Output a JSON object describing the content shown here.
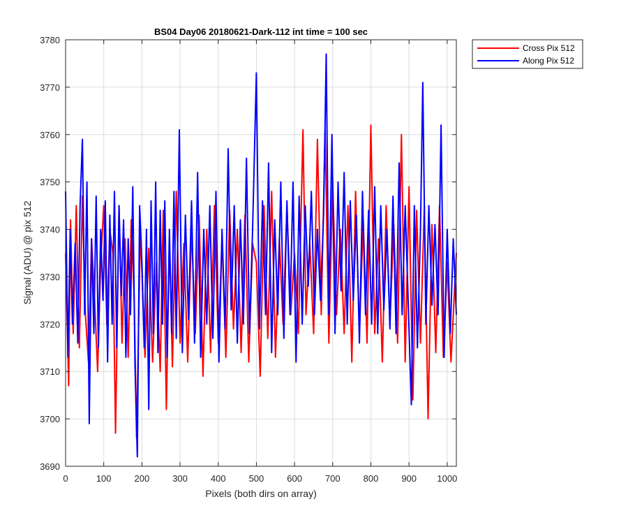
{
  "chart_data": {
    "type": "line",
    "title": "BS04 Day06 20180621-Dark-112 int time = 100 sec",
    "xlabel": "Pixels (both dirs on array)",
    "ylabel": "Signal (ADU) @ pix 512",
    "xlim": [
      0,
      1024
    ],
    "ylim": [
      3690,
      3780
    ],
    "xticks": [
      0,
      100,
      200,
      300,
      400,
      500,
      600,
      700,
      800,
      900,
      1000
    ],
    "yticks": [
      3690,
      3700,
      3710,
      3720,
      3730,
      3740,
      3750,
      3760,
      3770,
      3780
    ],
    "grid": true,
    "legend": "top-right outside",
    "series": [
      {
        "name": "Cross Pix 512",
        "color": "#ff0000",
        "x": [
          0,
          8,
          13,
          20,
          28,
          36,
          44,
          52,
          60,
          68,
          76,
          84,
          92,
          100,
          108,
          116,
          124,
          131,
          140,
          148,
          156,
          164,
          172,
          180,
          186,
          196,
          208,
          218,
          228,
          238,
          248,
          256,
          264,
          272,
          280,
          290,
          300,
          310,
          320,
          330,
          340,
          350,
          360,
          370,
          380,
          390,
          400,
          410,
          420,
          430,
          440,
          450,
          460,
          470,
          480,
          490,
          500,
          510,
          520,
          530,
          540,
          550,
          560,
          570,
          580,
          590,
          600,
          610,
          622,
          630,
          640,
          650,
          660,
          670,
          680,
          690,
          700,
          710,
          720,
          730,
          740,
          750,
          760,
          770,
          780,
          790,
          800,
          810,
          820,
          830,
          840,
          850,
          860,
          870,
          880,
          890,
          900,
          910,
          920,
          930,
          940,
          950,
          960,
          970,
          980,
          990,
          1000,
          1010,
          1024
        ],
        "y": [
          3735,
          3707,
          3742,
          3718,
          3745,
          3715,
          3747,
          3722,
          3712,
          3738,
          3725,
          3710,
          3733,
          3745,
          3720,
          3740,
          3735,
          3697,
          3745,
          3716,
          3738,
          3713,
          3742,
          3725,
          3696,
          3740,
          3713,
          3736,
          3712,
          3733,
          3710,
          3744,
          3702,
          3738,
          3711,
          3748,
          3716,
          3737,
          3712,
          3740,
          3718,
          3743,
          3709,
          3740,
          3714,
          3745,
          3716,
          3738,
          3713,
          3744,
          3719,
          3740,
          3714,
          3743,
          3712,
          3737,
          3733,
          3709,
          3745,
          3717,
          3748,
          3713,
          3738,
          3720,
          3745,
          3722,
          3735,
          3718,
          3761,
          3722,
          3737,
          3718,
          3759,
          3722,
          3761,
          3716,
          3750,
          3722,
          3740,
          3718,
          3745,
          3712,
          3748,
          3718,
          3742,
          3716,
          3762,
          3718,
          3738,
          3712,
          3745,
          3720,
          3741,
          3716,
          3760,
          3712,
          3749,
          3704,
          3744,
          3716,
          3745,
          3700,
          3741,
          3714,
          3745,
          3713,
          3733,
          3712,
          3735
        ]
      },
      {
        "name": "Along Pix 512",
        "color": "#0000ff",
        "x": [
          0,
          6,
          12,
          18,
          25,
          32,
          38,
          44,
          50,
          56,
          62,
          68,
          74,
          80,
          86,
          92,
          98,
          104,
          110,
          116,
          122,
          128,
          134,
          140,
          146,
          152,
          158,
          164,
          170,
          176,
          182,
          188,
          194,
          200,
          206,
          212,
          218,
          224,
          230,
          236,
          242,
          248,
          254,
          260,
          266,
          272,
          278,
          284,
          290,
          298,
          306,
          314,
          322,
          330,
          338,
          346,
          354,
          362,
          370,
          378,
          386,
          394,
          402,
          410,
          418,
          426,
          434,
          442,
          450,
          458,
          466,
          474,
          482,
          490,
          500,
          508,
          516,
          524,
          532,
          540,
          548,
          556,
          564,
          572,
          580,
          588,
          596,
          604,
          612,
          620,
          628,
          636,
          644,
          652,
          660,
          668,
          676,
          683,
          690,
          698,
          706,
          714,
          722,
          730,
          738,
          746,
          754,
          762,
          770,
          778,
          786,
          794,
          802,
          810,
          818,
          826,
          834,
          842,
          850,
          858,
          866,
          874,
          882,
          890,
          898,
          906,
          914,
          922,
          930,
          936,
          944,
          952,
          960,
          968,
          976,
          984,
          992,
          1000,
          1008,
          1016,
          1024
        ],
        "y": [
          3748,
          3713,
          3740,
          3720,
          3737,
          3716,
          3745,
          3759,
          3722,
          3750,
          3699,
          3738,
          3718,
          3747,
          3715,
          3740,
          3725,
          3746,
          3712,
          3743,
          3720,
          3748,
          3715,
          3745,
          3726,
          3742,
          3713,
          3738,
          3722,
          3749,
          3711,
          3692,
          3745,
          3733,
          3715,
          3740,
          3702,
          3746,
          3718,
          3750,
          3714,
          3744,
          3720,
          3746,
          3713,
          3740,
          3718,
          3748,
          3717,
          3761,
          3714,
          3743,
          3721,
          3746,
          3716,
          3752,
          3713,
          3740,
          3720,
          3745,
          3717,
          3748,
          3712,
          3740,
          3719,
          3757,
          3723,
          3745,
          3716,
          3742,
          3720,
          3755,
          3718,
          3740,
          3773,
          3719,
          3746,
          3722,
          3754,
          3714,
          3742,
          3722,
          3750,
          3717,
          3746,
          3722,
          3750,
          3712,
          3747,
          3720,
          3745,
          3728,
          3748,
          3722,
          3740,
          3725,
          3743,
          3777,
          3722,
          3760,
          3718,
          3750,
          3727,
          3752,
          3720,
          3746,
          3725,
          3743,
          3716,
          3748,
          3722,
          3744,
          3720,
          3749,
          3718,
          3745,
          3723,
          3740,
          3719,
          3747,
          3718,
          3754,
          3722,
          3745,
          3724,
          3703,
          3745,
          3715,
          3740,
          3771,
          3720,
          3745,
          3724,
          3741,
          3722,
          3762,
          3713,
          3740,
          3718,
          3738,
          3722
        ]
      }
    ]
  }
}
